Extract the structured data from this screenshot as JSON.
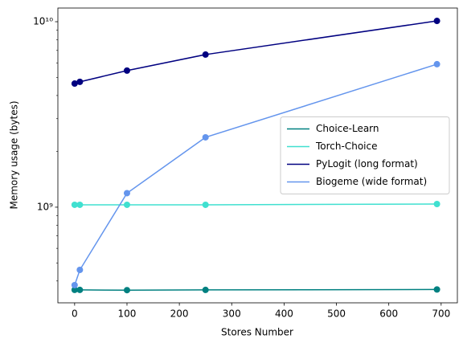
{
  "chart_data": {
    "type": "line",
    "xlabel": "Stores Number",
    "ylabel": "Memory usage (bytes)",
    "x": [
      0,
      10,
      100,
      250,
      692
    ],
    "series": [
      {
        "name": "Choice-Learn",
        "color": "#008080",
        "values": [
          358000000,
          358000000,
          357000000,
          358000000,
          360000000
        ]
      },
      {
        "name": "Torch-Choice",
        "color": "#40e0d0",
        "values": [
          1030000000,
          1030000000,
          1030000000,
          1030000000,
          1040000000
        ]
      },
      {
        "name": "PyLogit (long format)",
        "color": "#000080",
        "values": [
          4640000000,
          4740000000,
          5450000000,
          6650000000,
          10100000000
        ]
      },
      {
        "name": "Biogeme (wide format)",
        "color": "#6495ed",
        "values": [
          380000000,
          459000000,
          1190000000,
          2380000000,
          5900000000
        ]
      }
    ],
    "xlim": [
      -32,
      731
    ],
    "ylim": [
      305000000,
      11850000000
    ],
    "xticks": [
      0,
      100,
      200,
      300,
      400,
      500,
      600,
      700
    ],
    "yticks": [
      {
        "value": 1000000000,
        "label": "10⁹"
      },
      {
        "value": 10000000000,
        "label": "10¹⁰"
      }
    ],
    "yminorticks": [
      400000000,
      500000000,
      600000000,
      700000000,
      800000000,
      900000000,
      2000000000,
      3000000000,
      4000000000,
      5000000000,
      6000000000,
      7000000000,
      8000000000,
      9000000000
    ],
    "log_y": true,
    "legend": "center right"
  }
}
